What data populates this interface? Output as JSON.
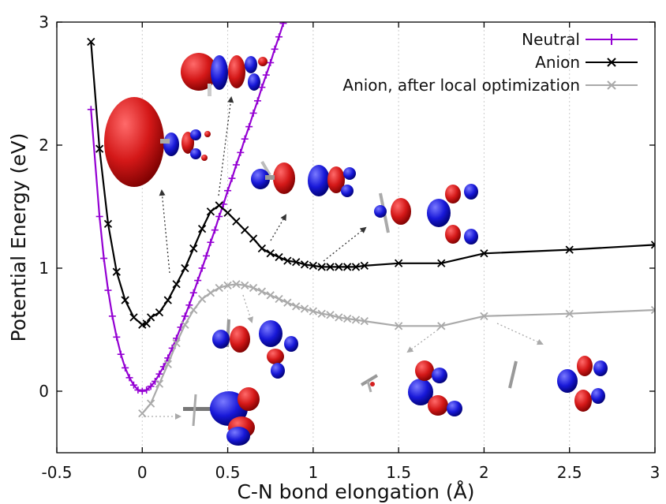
{
  "chart_data": {
    "type": "line",
    "title": "",
    "xlabel": "C-N bond elongation (Å)",
    "ylabel": "Potential Energy (eV)",
    "xlim": [
      -0.5,
      3
    ],
    "ylim": [
      -0.5,
      3
    ],
    "xticks": [
      -0.5,
      0,
      0.5,
      1,
      1.5,
      2,
      2.5,
      3
    ],
    "xtick_labels": [
      "-0.5",
      "0",
      "0.5",
      "1",
      "1.5",
      "2",
      "2.5",
      "3"
    ],
    "yticks": [
      0,
      1,
      2,
      3
    ],
    "ytick_labels": [
      "0",
      "1",
      "2",
      "3"
    ],
    "grid": "vertical dotted lines",
    "legend_position": "top-right",
    "series": [
      {
        "name": "Neutral",
        "color": "#9400d3",
        "marker": "plus",
        "x": [
          -0.3,
          -0.25,
          -0.225,
          -0.2,
          -0.175,
          -0.15,
          -0.125,
          -0.1,
          -0.075,
          -0.05,
          -0.025,
          0,
          0.025,
          0.05,
          0.075,
          0.1,
          0.125,
          0.15,
          0.175,
          0.2,
          0.225,
          0.25,
          0.275,
          0.3,
          0.325,
          0.35,
          0.375,
          0.4,
          0.425,
          0.45,
          0.475,
          0.5,
          0.525,
          0.55,
          0.575,
          0.6,
          0.625,
          0.65,
          0.675,
          0.7,
          0.725,
          0.75,
          0.775,
          0.8,
          0.825,
          0.85,
          0.875,
          0.9
        ],
        "y": [
          2.29,
          1.42,
          1.08,
          0.82,
          0.61,
          0.44,
          0.3,
          0.19,
          0.11,
          0.05,
          0.01,
          0.0,
          0.01,
          0.04,
          0.08,
          0.14,
          0.2,
          0.27,
          0.35,
          0.43,
          0.52,
          0.61,
          0.7,
          0.8,
          0.9,
          1.0,
          1.1,
          1.21,
          1.31,
          1.42,
          1.52,
          1.63,
          1.73,
          1.84,
          1.94,
          2.05,
          2.15,
          2.26,
          2.36,
          2.47,
          2.57,
          2.67,
          2.78,
          2.88,
          2.99,
          3.09,
          3.2,
          3.3
        ]
      },
      {
        "name": "Anion",
        "color": "#000000",
        "marker": "cross",
        "x": [
          -0.3,
          -0.25,
          -0.2,
          -0.15,
          -0.1,
          -0.05,
          0,
          0.025,
          0.05,
          0.1,
          0.15,
          0.2,
          0.25,
          0.3,
          0.35,
          0.4,
          0.45,
          0.5,
          0.55,
          0.6,
          0.65,
          0.7,
          0.75,
          0.8,
          0.85,
          0.9,
          0.95,
          1.0,
          1.05,
          1.1,
          1.15,
          1.2,
          1.25,
          1.3,
          1.5,
          1.75,
          2.0,
          2.5,
          3.0
        ],
        "y": [
          2.84,
          1.97,
          1.36,
          0.97,
          0.74,
          0.6,
          0.54,
          0.55,
          0.6,
          0.64,
          0.74,
          0.87,
          1.0,
          1.16,
          1.32,
          1.46,
          1.51,
          1.45,
          1.38,
          1.31,
          1.24,
          1.16,
          1.12,
          1.09,
          1.06,
          1.05,
          1.03,
          1.02,
          1.01,
          1.01,
          1.01,
          1.01,
          1.01,
          1.02,
          1.04,
          1.04,
          1.12,
          1.15,
          1.19
        ]
      },
      {
        "name": "Anion, after local optimization",
        "color": "#aaaaaa",
        "marker": "cross",
        "x": [
          0,
          0.05,
          0.1,
          0.15,
          0.2,
          0.25,
          0.3,
          0.35,
          0.4,
          0.45,
          0.5,
          0.55,
          0.6,
          0.65,
          0.7,
          0.75,
          0.8,
          0.85,
          0.9,
          0.95,
          1.0,
          1.05,
          1.1,
          1.15,
          1.2,
          1.25,
          1.3,
          1.5,
          1.75,
          2.0,
          2.5,
          3.0
        ],
        "y": [
          -0.18,
          -0.1,
          0.06,
          0.22,
          0.39,
          0.54,
          0.66,
          0.75,
          0.8,
          0.84,
          0.86,
          0.87,
          0.86,
          0.84,
          0.81,
          0.78,
          0.75,
          0.72,
          0.69,
          0.67,
          0.65,
          0.63,
          0.62,
          0.6,
          0.59,
          0.58,
          0.57,
          0.53,
          0.53,
          0.61,
          0.63,
          0.66
        ]
      }
    ]
  }
}
